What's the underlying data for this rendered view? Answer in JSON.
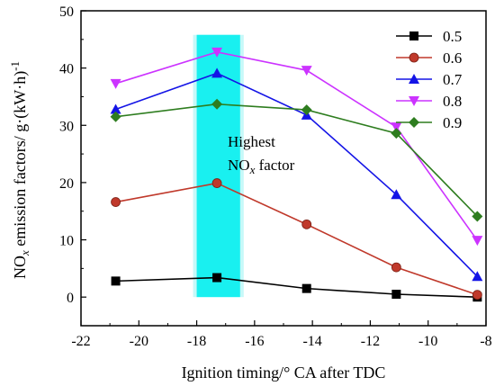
{
  "chart_data": {
    "type": "line",
    "xlabel": "Ignition timing/° CA after TDC",
    "ylabel_main": "NO",
    "ylabel_sub": "x",
    "ylabel_rest": " emission factors/ g·(kW·h)",
    "ylabel_sup": "-1",
    "xlim": [
      -22,
      -8
    ],
    "ylim": [
      -5,
      50
    ],
    "xticks": [
      -22,
      -20,
      -18,
      -16,
      -14,
      -12,
      -10,
      -8
    ],
    "yticks": [
      0,
      10,
      20,
      30,
      40,
      50
    ],
    "x": [
      -20.8,
      -17.3,
      -14.2,
      -11.1,
      -8.3
    ],
    "series": [
      {
        "name": "0.5",
        "color": "#000000",
        "marker": "square",
        "values": [
          2.8,
          3.4,
          1.5,
          0.5,
          0.0
        ]
      },
      {
        "name": "0.6",
        "color": "#c0392b",
        "marker": "circle",
        "values": [
          16.6,
          19.9,
          12.7,
          5.2,
          0.4
        ]
      },
      {
        "name": "0.7",
        "color": "#1414e6",
        "marker": "triangle-up",
        "values": [
          32.8,
          39.1,
          31.8,
          17.9,
          3.6
        ]
      },
      {
        "name": "0.8",
        "color": "#cc33ff",
        "marker": "triangle-down",
        "values": [
          37.3,
          42.8,
          39.6,
          29.7,
          9.9
        ]
      },
      {
        "name": "0.9",
        "color": "#2e7d1f",
        "marker": "diamond",
        "values": [
          31.5,
          33.7,
          32.7,
          28.6,
          14.1
        ]
      }
    ],
    "highlight": {
      "x_range": [
        -18,
        -16.5
      ],
      "color": "#19f0f0"
    },
    "annotation_line1": "Highest",
    "annotation_line2_main": "NO",
    "annotation_line2_sub": "x",
    "annotation_line2_rest": " factor",
    "legend_position": "top-right",
    "grid": false
  }
}
